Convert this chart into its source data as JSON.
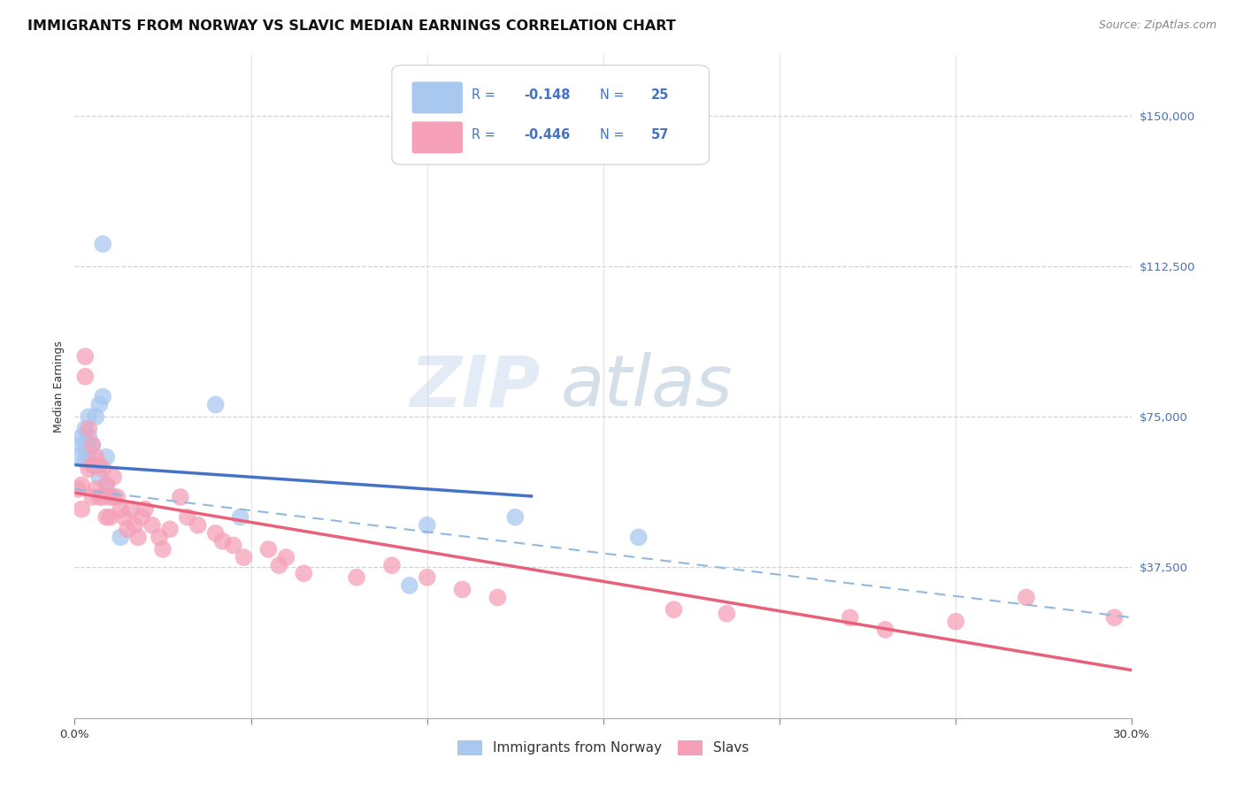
{
  "title": "IMMIGRANTS FROM NORWAY VS SLAVIC MEDIAN EARNINGS CORRELATION CHART",
  "source": "Source: ZipAtlas.com",
  "ylabel": "Median Earnings",
  "x_min": 0.0,
  "x_max": 0.3,
  "y_min": 0,
  "y_max": 165000,
  "norway_R": "-0.148",
  "norway_N": "25",
  "slavic_R": "-0.446",
  "slavic_N": "57",
  "legend_labels": [
    "Immigrants from Norway",
    "Slavs"
  ],
  "color_norway": "#a8c8f0",
  "color_slavic": "#f5a0b8",
  "line_color_norway": "#4472c4",
  "line_color_slavic": "#e8607a",
  "line_color_dashed": "#90b8e0",
  "background_color": "#ffffff",
  "grid_color": "#c8d4e8",
  "watermark_zip": "ZIP",
  "watermark_atlas": "atlas",
  "norway_points_x": [
    0.001,
    0.002,
    0.002,
    0.003,
    0.003,
    0.003,
    0.004,
    0.004,
    0.004,
    0.005,
    0.005,
    0.006,
    0.007,
    0.007,
    0.008,
    0.009,
    0.009,
    0.011,
    0.013,
    0.04,
    0.047,
    0.095,
    0.1,
    0.125,
    0.16
  ],
  "norway_points_y": [
    65000,
    68000,
    70000,
    64000,
    67000,
    72000,
    66000,
    70000,
    75000,
    63000,
    68000,
    75000,
    78000,
    60000,
    80000,
    65000,
    58000,
    55000,
    45000,
    78000,
    50000,
    33000,
    48000,
    50000,
    45000
  ],
  "norway_outlier_x": [
    0.008
  ],
  "norway_outlier_y": [
    118000
  ],
  "slavic_points_x": [
    0.001,
    0.002,
    0.002,
    0.003,
    0.003,
    0.004,
    0.004,
    0.005,
    0.005,
    0.005,
    0.006,
    0.006,
    0.007,
    0.007,
    0.008,
    0.008,
    0.009,
    0.009,
    0.01,
    0.01,
    0.011,
    0.012,
    0.013,
    0.014,
    0.015,
    0.016,
    0.017,
    0.018,
    0.019,
    0.02,
    0.022,
    0.024,
    0.025,
    0.027,
    0.03,
    0.032,
    0.035,
    0.04,
    0.042,
    0.045,
    0.048,
    0.055,
    0.058,
    0.06,
    0.065,
    0.08,
    0.09,
    0.1,
    0.11,
    0.12,
    0.17,
    0.185,
    0.22,
    0.23,
    0.25,
    0.27,
    0.295
  ],
  "slavic_points_y": [
    57000,
    58000,
    52000,
    90000,
    85000,
    72000,
    62000,
    68000,
    63000,
    55000,
    65000,
    57000,
    63000,
    55000,
    62000,
    55000,
    58000,
    50000,
    55000,
    50000,
    60000,
    55000,
    52000,
    50000,
    47000,
    52000,
    48000,
    45000,
    50000,
    52000,
    48000,
    45000,
    42000,
    47000,
    55000,
    50000,
    48000,
    46000,
    44000,
    43000,
    40000,
    42000,
    38000,
    40000,
    36000,
    35000,
    38000,
    35000,
    32000,
    30000,
    27000,
    26000,
    25000,
    22000,
    24000,
    30000,
    25000
  ],
  "title_fontsize": 11.5,
  "source_fontsize": 9,
  "axis_label_fontsize": 9,
  "tick_fontsize": 9.5,
  "legend_fontsize": 11,
  "marker_size": 200
}
